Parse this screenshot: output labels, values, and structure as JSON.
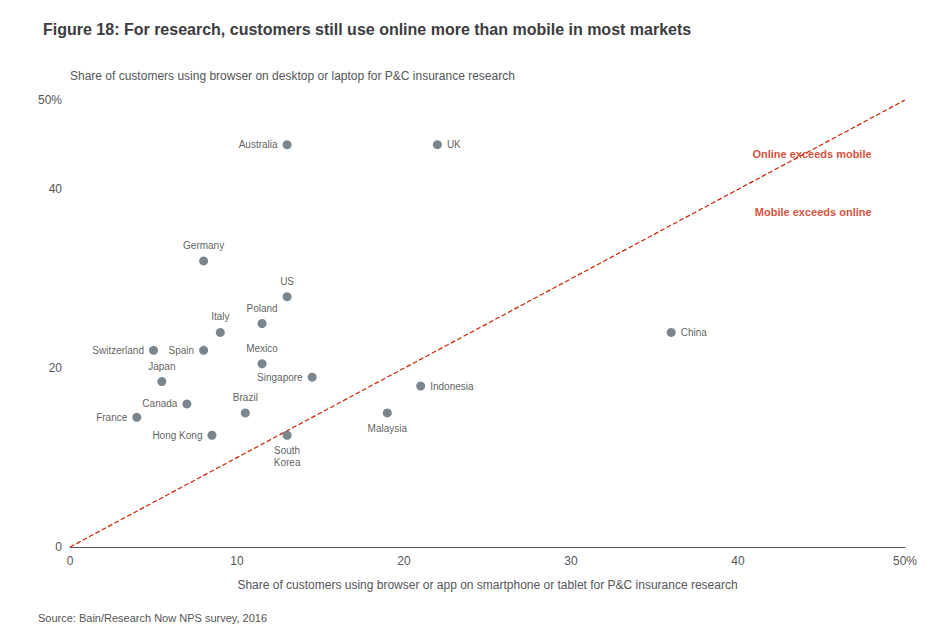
{
  "chart_data": {
    "type": "scatter",
    "title": "Figure 18: For research, customers still use online more than mobile in most markets",
    "ylabel": "Share of customers using browser on desktop or laptop for P&C insurance research",
    "xlabel": "Share of customers using browser or app on smartphone or tablet for P&C insurance research",
    "source": "Source: Bain/Research Now NPS survey, 2016",
    "xlim": [
      0,
      50
    ],
    "ylim": [
      0,
      50
    ],
    "xticks": [
      0,
      10,
      20,
      30,
      40,
      {
        "value": 50,
        "label": "50%"
      }
    ],
    "yticks": [
      0,
      20,
      40,
      {
        "value": 50,
        "label": "50%"
      }
    ],
    "grid": false,
    "color": "#5a6672",
    "points": [
      {
        "label": "Australia",
        "x": 13,
        "y": 45
      },
      {
        "label": "UK",
        "x": 22,
        "y": 45
      },
      {
        "label": "Germany",
        "x": 8,
        "y": 32
      },
      {
        "label": "US",
        "x": 13,
        "y": 28
      },
      {
        "label": "Poland",
        "x": 11.5,
        "y": 25
      },
      {
        "label": "Italy",
        "x": 9,
        "y": 24
      },
      {
        "label": "Mexico",
        "x": 11.5,
        "y": 20.5
      },
      {
        "label": "Switzerland",
        "x": 5,
        "y": 22
      },
      {
        "label": "Spain",
        "x": 8,
        "y": 22
      },
      {
        "label": "Japan",
        "x": 5.5,
        "y": 18.5
      },
      {
        "label": "France",
        "x": 4,
        "y": 14.5
      },
      {
        "label": "Canada",
        "x": 7,
        "y": 16
      },
      {
        "label": "Brazil",
        "x": 10.5,
        "y": 15
      },
      {
        "label": "Hong Kong",
        "x": 8.5,
        "y": 12.5
      },
      {
        "label": "Singapore",
        "x": 14.5,
        "y": 19
      },
      {
        "label": "Indonesia",
        "x": 21,
        "y": 18
      },
      {
        "label": "Malaysia",
        "x": 19,
        "y": 15
      },
      {
        "label": "South\nKorea",
        "x": 13,
        "y": 12.5
      },
      {
        "label": "China",
        "x": 36,
        "y": 24
      }
    ],
    "diagonal": {
      "from": [
        0,
        0
      ],
      "to": [
        50,
        50
      ],
      "color": "#cc2200",
      "line_style": "dashed"
    },
    "annotations": [
      {
        "text": "Online exceeds mobile",
        "x": 48,
        "y": 44,
        "color": "#cc2200"
      },
      {
        "text": "Mobile exceeds online",
        "x": 48,
        "y": 37.5,
        "color": "#cc2200"
      }
    ]
  }
}
